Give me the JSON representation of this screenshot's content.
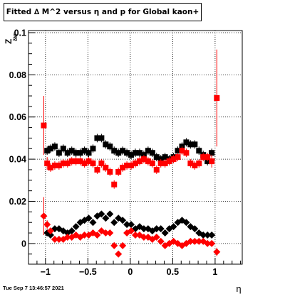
{
  "chart_data": {
    "type": "scatter",
    "title": "Fitted ∆ M^2 versus η and p for Global kaon+",
    "xlabel": "η",
    "ylabel": "Z",
    "ylabel_sub": "δM²",
    "xlim": [
      -1.2,
      1.32
    ],
    "ylim": [
      -0.0098,
      0.101
    ],
    "xticks": [
      -1,
      -0.5,
      0,
      0.5,
      1
    ],
    "xtick_labels": [
      "−1",
      "−0.5",
      "0",
      "0.5",
      "1"
    ],
    "yticks": [
      0,
      0.02,
      0.04,
      0.06,
      0.08,
      0.1
    ],
    "ytick_labels": [
      "0",
      "0.02",
      "0.04",
      "0.06",
      "0.08",
      "0.1"
    ],
    "grid": true,
    "series": [
      {
        "marker": "square",
        "color": "#000000",
        "points": [
          {
            "x": -0.98,
            "y": 0.044,
            "err": 0.002
          },
          {
            "x": -0.94,
            "y": 0.045,
            "err": 0.002
          },
          {
            "x": -0.89,
            "y": 0.046,
            "err": 0.002
          },
          {
            "x": -0.84,
            "y": 0.043,
            "err": 0.002
          },
          {
            "x": -0.79,
            "y": 0.045,
            "err": 0.002
          },
          {
            "x": -0.74,
            "y": 0.043,
            "err": 0.002
          },
          {
            "x": -0.69,
            "y": 0.044,
            "err": 0.002
          },
          {
            "x": -0.64,
            "y": 0.043,
            "err": 0.002
          },
          {
            "x": -0.59,
            "y": 0.043,
            "err": 0.002
          },
          {
            "x": -0.54,
            "y": 0.044,
            "err": 0.002
          },
          {
            "x": -0.49,
            "y": 0.043,
            "err": 0.002
          },
          {
            "x": -0.44,
            "y": 0.045,
            "err": 0.002
          },
          {
            "x": -0.39,
            "y": 0.05,
            "err": 0.002
          },
          {
            "x": -0.34,
            "y": 0.05,
            "err": 0.002
          },
          {
            "x": -0.29,
            "y": 0.047,
            "err": 0.002
          },
          {
            "x": -0.24,
            "y": 0.046,
            "err": 0.002
          },
          {
            "x": -0.19,
            "y": 0.044,
            "err": 0.002
          },
          {
            "x": -0.14,
            "y": 0.043,
            "err": 0.002
          },
          {
            "x": -0.09,
            "y": 0.044,
            "err": 0.002
          },
          {
            "x": -0.04,
            "y": 0.043,
            "err": 0.002
          },
          {
            "x": 0.01,
            "y": 0.042,
            "err": 0.002
          },
          {
            "x": 0.06,
            "y": 0.043,
            "err": 0.002
          },
          {
            "x": 0.11,
            "y": 0.043,
            "err": 0.002
          },
          {
            "x": 0.16,
            "y": 0.042,
            "err": 0.002
          },
          {
            "x": 0.21,
            "y": 0.044,
            "err": 0.002
          },
          {
            "x": 0.26,
            "y": 0.043,
            "err": 0.002
          },
          {
            "x": 0.31,
            "y": 0.041,
            "err": 0.002
          },
          {
            "x": 0.36,
            "y": 0.04,
            "err": 0.002
          },
          {
            "x": 0.41,
            "y": 0.041,
            "err": 0.002
          },
          {
            "x": 0.46,
            "y": 0.04,
            "err": 0.002
          },
          {
            "x": 0.51,
            "y": 0.041,
            "err": 0.002
          },
          {
            "x": 0.56,
            "y": 0.044,
            "err": 0.002
          },
          {
            "x": 0.61,
            "y": 0.046,
            "err": 0.002
          },
          {
            "x": 0.66,
            "y": 0.048,
            "err": 0.002
          },
          {
            "x": 0.71,
            "y": 0.047,
            "err": 0.002
          },
          {
            "x": 0.76,
            "y": 0.047,
            "err": 0.002
          },
          {
            "x": 0.81,
            "y": 0.044,
            "err": 0.002
          },
          {
            "x": 0.86,
            "y": 0.042,
            "err": 0.002
          },
          {
            "x": 0.91,
            "y": 0.039,
            "err": 0.002
          },
          {
            "x": 0.96,
            "y": 0.043,
            "err": 0.002
          }
        ]
      },
      {
        "marker": "square",
        "color": "#ff0000",
        "points": [
          {
            "x": -1.02,
            "y": 0.056,
            "err": 0.014
          },
          {
            "x": -0.98,
            "y": 0.038,
            "err": 0.003
          },
          {
            "x": -0.94,
            "y": 0.036,
            "err": 0.002
          },
          {
            "x": -0.89,
            "y": 0.037,
            "err": 0.002
          },
          {
            "x": -0.84,
            "y": 0.037,
            "err": 0.002
          },
          {
            "x": -0.79,
            "y": 0.038,
            "err": 0.002
          },
          {
            "x": -0.74,
            "y": 0.038,
            "err": 0.002
          },
          {
            "x": -0.69,
            "y": 0.039,
            "err": 0.002
          },
          {
            "x": -0.64,
            "y": 0.039,
            "err": 0.002
          },
          {
            "x": -0.59,
            "y": 0.039,
            "err": 0.002
          },
          {
            "x": -0.54,
            "y": 0.038,
            "err": 0.002
          },
          {
            "x": -0.49,
            "y": 0.039,
            "err": 0.002
          },
          {
            "x": -0.44,
            "y": 0.038,
            "err": 0.002
          },
          {
            "x": -0.39,
            "y": 0.035,
            "err": 0.002
          },
          {
            "x": -0.34,
            "y": 0.038,
            "err": 0.002
          },
          {
            "x": -0.29,
            "y": 0.036,
            "err": 0.002
          },
          {
            "x": -0.24,
            "y": 0.034,
            "err": 0.002
          },
          {
            "x": -0.19,
            "y": 0.028,
            "err": 0.002
          },
          {
            "x": -0.14,
            "y": 0.034,
            "err": 0.002
          },
          {
            "x": -0.09,
            "y": 0.036,
            "err": 0.002
          },
          {
            "x": -0.04,
            "y": 0.037,
            "err": 0.002
          },
          {
            "x": 0.01,
            "y": 0.037,
            "err": 0.002
          },
          {
            "x": 0.06,
            "y": 0.038,
            "err": 0.002
          },
          {
            "x": 0.11,
            "y": 0.039,
            "err": 0.002
          },
          {
            "x": 0.16,
            "y": 0.04,
            "err": 0.002
          },
          {
            "x": 0.21,
            "y": 0.039,
            "err": 0.002
          },
          {
            "x": 0.26,
            "y": 0.038,
            "err": 0.002
          },
          {
            "x": 0.31,
            "y": 0.035,
            "err": 0.002
          },
          {
            "x": 0.36,
            "y": 0.038,
            "err": 0.002
          },
          {
            "x": 0.41,
            "y": 0.038,
            "err": 0.002
          },
          {
            "x": 0.46,
            "y": 0.039,
            "err": 0.002
          },
          {
            "x": 0.51,
            "y": 0.04,
            "err": 0.002
          },
          {
            "x": 0.56,
            "y": 0.041,
            "err": 0.002
          },
          {
            "x": 0.61,
            "y": 0.044,
            "err": 0.002
          },
          {
            "x": 0.66,
            "y": 0.043,
            "err": 0.002
          },
          {
            "x": 0.71,
            "y": 0.038,
            "err": 0.002
          },
          {
            "x": 0.76,
            "y": 0.037,
            "err": 0.002
          },
          {
            "x": 0.81,
            "y": 0.038,
            "err": 0.002
          },
          {
            "x": 0.86,
            "y": 0.041,
            "err": 0.002
          },
          {
            "x": 0.91,
            "y": 0.041,
            "err": 0.002
          },
          {
            "x": 0.96,
            "y": 0.039,
            "err": 0.003
          },
          {
            "x": 1.02,
            "y": 0.069,
            "err": 0.023
          }
        ]
      },
      {
        "marker": "diamond",
        "color": "#000000",
        "points": [
          {
            "x": -0.98,
            "y": 0.005,
            "err": 0.001
          },
          {
            "x": -0.94,
            "y": 0.004,
            "err": 0.001
          },
          {
            "x": -0.89,
            "y": 0.007,
            "err": 0.001
          },
          {
            "x": -0.84,
            "y": 0.007,
            "err": 0.001
          },
          {
            "x": -0.79,
            "y": 0.006,
            "err": 0.001
          },
          {
            "x": -0.74,
            "y": 0.005,
            "err": 0.001
          },
          {
            "x": -0.69,
            "y": 0.006,
            "err": 0.001
          },
          {
            "x": -0.64,
            "y": 0.008,
            "err": 0.001
          },
          {
            "x": -0.59,
            "y": 0.01,
            "err": 0.001
          },
          {
            "x": -0.54,
            "y": 0.011,
            "err": 0.001
          },
          {
            "x": -0.49,
            "y": 0.012,
            "err": 0.001
          },
          {
            "x": -0.44,
            "y": 0.01,
            "err": 0.001
          },
          {
            "x": -0.39,
            "y": 0.013,
            "err": 0.001
          },
          {
            "x": -0.34,
            "y": 0.014,
            "err": 0.001
          },
          {
            "x": -0.29,
            "y": 0.012,
            "err": 0.001
          },
          {
            "x": -0.24,
            "y": 0.014,
            "err": 0.001
          },
          {
            "x": -0.19,
            "y": 0.01,
            "err": 0.001
          },
          {
            "x": -0.14,
            "y": 0.012,
            "err": 0.001
          },
          {
            "x": -0.09,
            "y": 0.011,
            "err": 0.001
          },
          {
            "x": -0.04,
            "y": 0.009,
            "err": 0.001
          },
          {
            "x": 0.01,
            "y": 0.009,
            "err": 0.001
          },
          {
            "x": 0.06,
            "y": 0.007,
            "err": 0.001
          },
          {
            "x": 0.11,
            "y": 0.008,
            "err": 0.001
          },
          {
            "x": 0.16,
            "y": 0.007,
            "err": 0.001
          },
          {
            "x": 0.21,
            "y": 0.007,
            "err": 0.001
          },
          {
            "x": 0.26,
            "y": 0.006,
            "err": 0.001
          },
          {
            "x": 0.31,
            "y": 0.007,
            "err": 0.001
          },
          {
            "x": 0.36,
            "y": 0.007,
            "err": 0.001
          },
          {
            "x": 0.41,
            "y": 0.005,
            "err": 0.001
          },
          {
            "x": 0.46,
            "y": 0.007,
            "err": 0.001
          },
          {
            "x": 0.51,
            "y": 0.008,
            "err": 0.001
          },
          {
            "x": 0.56,
            "y": 0.01,
            "err": 0.001
          },
          {
            "x": 0.61,
            "y": 0.011,
            "err": 0.001
          },
          {
            "x": 0.66,
            "y": 0.01,
            "err": 0.001
          },
          {
            "x": 0.71,
            "y": 0.008,
            "err": 0.001
          },
          {
            "x": 0.76,
            "y": 0.007,
            "err": 0.001
          },
          {
            "x": 0.81,
            "y": 0.005,
            "err": 0.001
          },
          {
            "x": 0.86,
            "y": 0.004,
            "err": 0.001
          },
          {
            "x": 0.91,
            "y": 0.004,
            "err": 0.001
          },
          {
            "x": 0.96,
            "y": 0.004,
            "err": 0.001
          }
        ]
      },
      {
        "marker": "diamond",
        "color": "#ff0000",
        "points": [
          {
            "x": -1.02,
            "y": 0.013,
            "err": 0.009
          },
          {
            "x": -0.98,
            "y": 0.009,
            "err": 0.002
          },
          {
            "x": -0.94,
            "y": 0.006,
            "err": 0.001
          },
          {
            "x": -0.89,
            "y": 0.002,
            "err": 0.001
          },
          {
            "x": -0.84,
            "y": 0.002,
            "err": 0.001
          },
          {
            "x": -0.79,
            "y": 0.002,
            "err": 0.001
          },
          {
            "x": -0.74,
            "y": 0.003,
            "err": 0.001
          },
          {
            "x": -0.69,
            "y": 0.003,
            "err": 0.001
          },
          {
            "x": -0.64,
            "y": 0.004,
            "err": 0.001
          },
          {
            "x": -0.59,
            "y": 0.003,
            "err": 0.001
          },
          {
            "x": -0.54,
            "y": 0.004,
            "err": 0.001
          },
          {
            "x": -0.49,
            "y": 0.004,
            "err": 0.001
          },
          {
            "x": -0.44,
            "y": 0.005,
            "err": 0.001
          },
          {
            "x": -0.39,
            "y": 0.004,
            "err": 0.001
          },
          {
            "x": -0.34,
            "y": 0.006,
            "err": 0.001
          },
          {
            "x": -0.29,
            "y": 0.005,
            "err": 0.001
          },
          {
            "x": -0.24,
            "y": 0.005,
            "err": 0.001
          },
          {
            "x": -0.19,
            "y": -0.001,
            "err": 0.001
          },
          {
            "x": -0.14,
            "y": -0.005,
            "err": 0.001
          },
          {
            "x": -0.09,
            "y": -0.001,
            "err": 0.001
          },
          {
            "x": -0.04,
            "y": 0.005,
            "err": 0.001
          },
          {
            "x": 0.01,
            "y": 0.006,
            "err": 0.001
          },
          {
            "x": 0.06,
            "y": 0.004,
            "err": 0.001
          },
          {
            "x": 0.11,
            "y": 0.004,
            "err": 0.001
          },
          {
            "x": 0.16,
            "y": 0.003,
            "err": 0.001
          },
          {
            "x": 0.21,
            "y": 0.003,
            "err": 0.001
          },
          {
            "x": 0.26,
            "y": 0.002,
            "err": 0.001
          },
          {
            "x": 0.31,
            "y": 0.003,
            "err": 0.001
          },
          {
            "x": 0.36,
            "y": 0.001,
            "err": 0.001
          },
          {
            "x": 0.41,
            "y": -0.001,
            "err": 0.001
          },
          {
            "x": 0.46,
            "y": 0.0,
            "err": 0.001
          },
          {
            "x": 0.51,
            "y": 0.001,
            "err": 0.001
          },
          {
            "x": 0.56,
            "y": 0.0,
            "err": 0.001
          },
          {
            "x": 0.61,
            "y": -0.001,
            "err": 0.001
          },
          {
            "x": 0.66,
            "y": 0.0,
            "err": 0.001
          },
          {
            "x": 0.71,
            "y": 0.001,
            "err": 0.001
          },
          {
            "x": 0.76,
            "y": 0.001,
            "err": 0.001
          },
          {
            "x": 0.81,
            "y": 0.001,
            "err": 0.001
          },
          {
            "x": 0.86,
            "y": 0.001,
            "err": 0.001
          },
          {
            "x": 0.91,
            "y": 0.0,
            "err": 0.001
          },
          {
            "x": 0.96,
            "y": 0.0,
            "err": 0.001
          },
          {
            "x": 1.02,
            "y": -0.004,
            "err": 0.002
          }
        ]
      }
    ]
  },
  "footer_text": "Tue Sep  7 13:46:57 2021"
}
